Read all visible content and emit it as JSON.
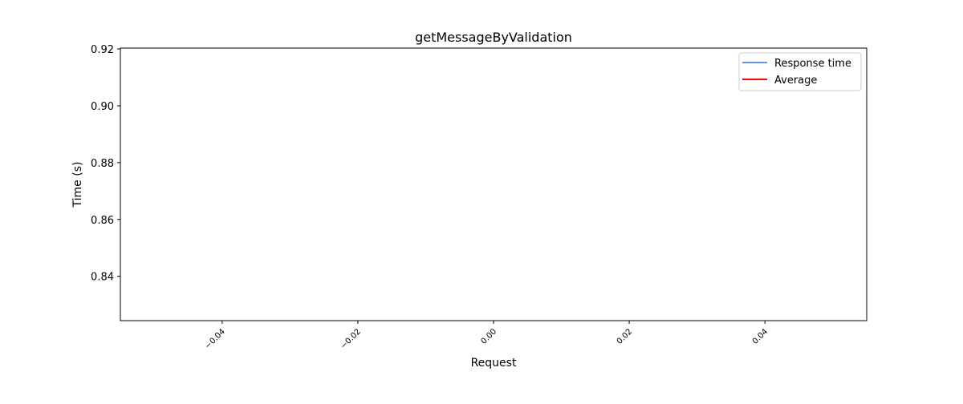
{
  "chart_data": {
    "type": "line",
    "title": "getMessageByValidation",
    "xlabel": "Request",
    "ylabel": "Time (s)",
    "xlim": [
      -0.055,
      0.055
    ],
    "ylim": [
      0.8244,
      0.9203
    ],
    "x_ticks": [
      -0.04,
      -0.02,
      0.0,
      0.02,
      0.04
    ],
    "x_tick_labels": [
      "−0.04",
      "−0.02",
      "0.00",
      "0.02",
      "0.04"
    ],
    "y_ticks": [
      0.84,
      0.86,
      0.88,
      0.9,
      0.92
    ],
    "y_tick_labels": [
      "0.84",
      "0.86",
      "0.88",
      "0.90",
      "0.92"
    ],
    "grid": false,
    "legend_position": "top-right",
    "series": [
      {
        "name": "Response time",
        "color": "#6495ed",
        "x": [],
        "y": []
      },
      {
        "name": "Average",
        "color": "#ff0000",
        "x": [],
        "y": []
      }
    ]
  }
}
